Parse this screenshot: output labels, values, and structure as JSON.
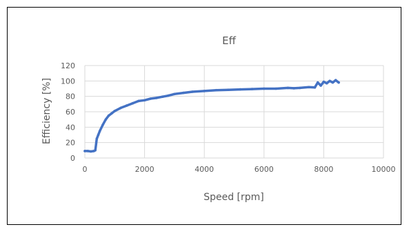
{
  "chart_data": {
    "type": "scatter",
    "title": "Eff",
    "xlabel": "Speed [rpm]",
    "ylabel": "Efficiency [%]",
    "xlim": [
      0,
      10000
    ],
    "ylim": [
      0,
      120
    ],
    "xticks": [
      0,
      2000,
      4000,
      6000,
      8000,
      10000
    ],
    "yticks": [
      0,
      20,
      40,
      60,
      80,
      100,
      120
    ],
    "grid": true,
    "legend": "none",
    "series_color": "#4472c4",
    "series": [
      {
        "x": [
          0,
          100,
          200,
          300,
          350,
          400,
          450,
          500,
          600,
          700,
          800,
          900,
          1000,
          1200,
          1400,
          1600,
          1800,
          2000,
          2200,
          2400,
          2600,
          2800,
          3000,
          3300,
          3600,
          4000,
          4400,
          4800,
          5200,
          5600,
          6000,
          6400,
          6800,
          7000,
          7200,
          7500,
          7700,
          7800,
          7900,
          8000,
          8100,
          8200,
          8300,
          8400,
          8500
        ],
        "y": [
          9,
          9,
          8.5,
          9,
          10,
          25,
          30,
          35,
          43,
          50,
          55,
          58,
          61,
          65,
          68,
          71,
          74,
          75,
          77,
          78,
          79.5,
          81,
          83,
          84.5,
          86,
          87,
          88,
          88.5,
          89,
          89.5,
          90,
          90,
          91,
          90.5,
          91,
          92,
          91.5,
          98,
          94,
          99,
          97,
          100,
          98,
          101,
          98
        ]
      }
    ]
  }
}
